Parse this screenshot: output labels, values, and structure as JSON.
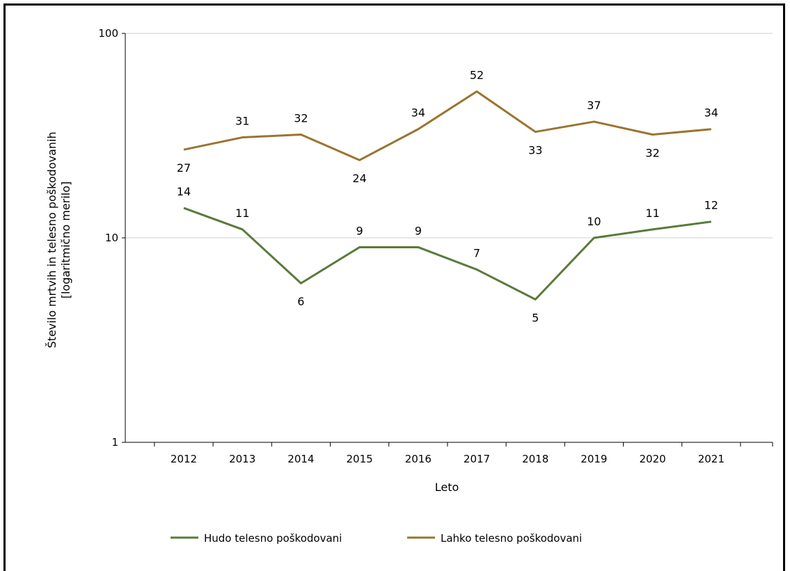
{
  "chart_data": {
    "type": "line",
    "x": [
      "2012",
      "2013",
      "2014",
      "2015",
      "2016",
      "2017",
      "2018",
      "2019",
      "2020",
      "2021"
    ],
    "series": [
      {
        "name": "Hudo telesno poškodovani",
        "color": "#5a7a3a",
        "values": [
          14,
          11,
          6,
          9,
          9,
          7,
          5,
          10,
          11,
          12
        ]
      },
      {
        "name": "Lahko telesno poškodovani",
        "color": "#9b7430",
        "values": [
          27,
          31,
          32,
          24,
          34,
          52,
          33,
          37,
          32,
          34
        ]
      }
    ],
    "xlabel": "Leto",
    "ylabel_line1": "Število mrtvih in telesno poškodovanih",
    "ylabel_line2": "[logaritmično merilo]",
    "y_scale": "log",
    "ylim": [
      1,
      100
    ],
    "y_ticks": [
      "1",
      "10",
      "100"
    ],
    "grid": "horizontal",
    "legend_position": "bottom"
  }
}
